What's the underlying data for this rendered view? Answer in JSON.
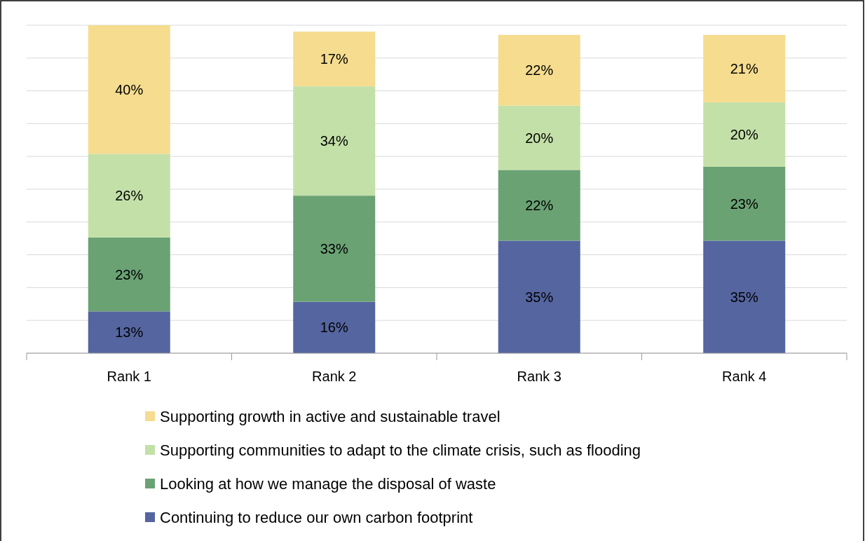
{
  "chart_data": {
    "type": "bar",
    "stacked": true,
    "categories": [
      "Rank 1",
      "Rank 2",
      "Rank 3",
      "Rank 4"
    ],
    "series": [
      {
        "name": "Continuing to reduce our own carbon footprint",
        "color": "#5565a0",
        "values": [
          13,
          16,
          35,
          35
        ],
        "value_labels": [
          "13%",
          "16%",
          "35%",
          "35%"
        ]
      },
      {
        "name": "Looking at how we manage the disposal of waste",
        "color": "#6aa274",
        "values": [
          23,
          33,
          22,
          23
        ],
        "value_labels": [
          "23%",
          "33%",
          "22%",
          "23%"
        ]
      },
      {
        "name": "Supporting communities to adapt to the climate crisis, such as flooding",
        "color": "#c3e0a8",
        "values": [
          26,
          34,
          20,
          20
        ],
        "value_labels": [
          "26%",
          "34%",
          "20%",
          "20%"
        ]
      },
      {
        "name": "Supporting growth in active and sustainable travel",
        "color": "#f5dc8f",
        "values": [
          40,
          17,
          22,
          21
        ],
        "value_labels": [
          "40%",
          "17%",
          "22%",
          "21%"
        ]
      }
    ],
    "grid": "y",
    "legend": "bottom",
    "tick_labels": "x"
  }
}
